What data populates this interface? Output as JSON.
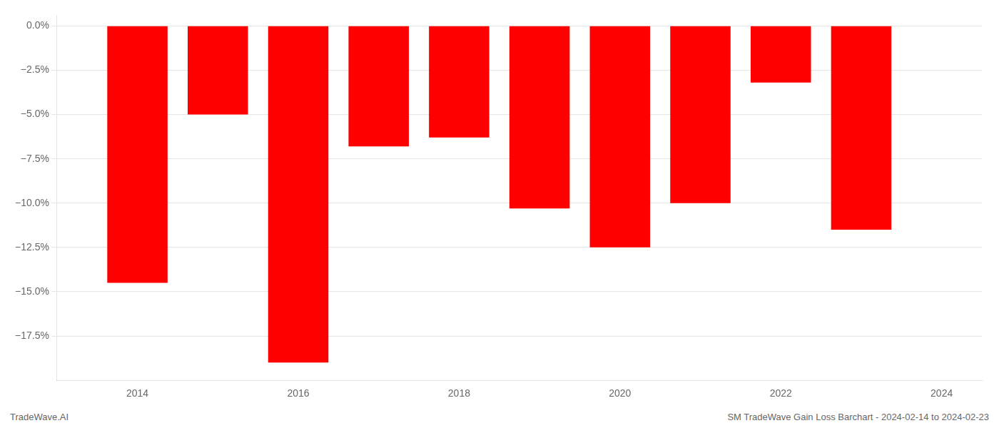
{
  "chart_data": {
    "type": "bar",
    "x": [
      2014,
      2015,
      2016,
      2017,
      2018,
      2019,
      2020,
      2021,
      2022,
      2023
    ],
    "values": [
      -14.5,
      -5.0,
      -19.0,
      -6.8,
      -6.3,
      -10.3,
      -12.5,
      -10.0,
      -3.2,
      -11.5
    ],
    "color": "#ff0000",
    "xlim": [
      2013.0,
      2024.5
    ],
    "xticks": [
      2014,
      2016,
      2018,
      2020,
      2022,
      2024
    ],
    "ylim": [
      -20.0,
      0.6
    ],
    "yticks": [
      {
        "value": 0.0,
        "label": "0.0%"
      },
      {
        "value": -2.5,
        "label": "−2.5%"
      },
      {
        "value": -5.0,
        "label": "−5.0%"
      },
      {
        "value": -7.5,
        "label": "−7.5%"
      },
      {
        "value": -10.0,
        "label": "−10.0%"
      },
      {
        "value": -12.5,
        "label": "−12.5%"
      },
      {
        "value": -15.0,
        "label": "−15.0%"
      },
      {
        "value": -17.5,
        "label": "−17.5%"
      }
    ],
    "grid": true,
    "annotations": [
      "TradeWave.AI",
      "SM TradeWave Gain Loss Barchart - 2024-02-14 to 2024-02-23"
    ]
  }
}
